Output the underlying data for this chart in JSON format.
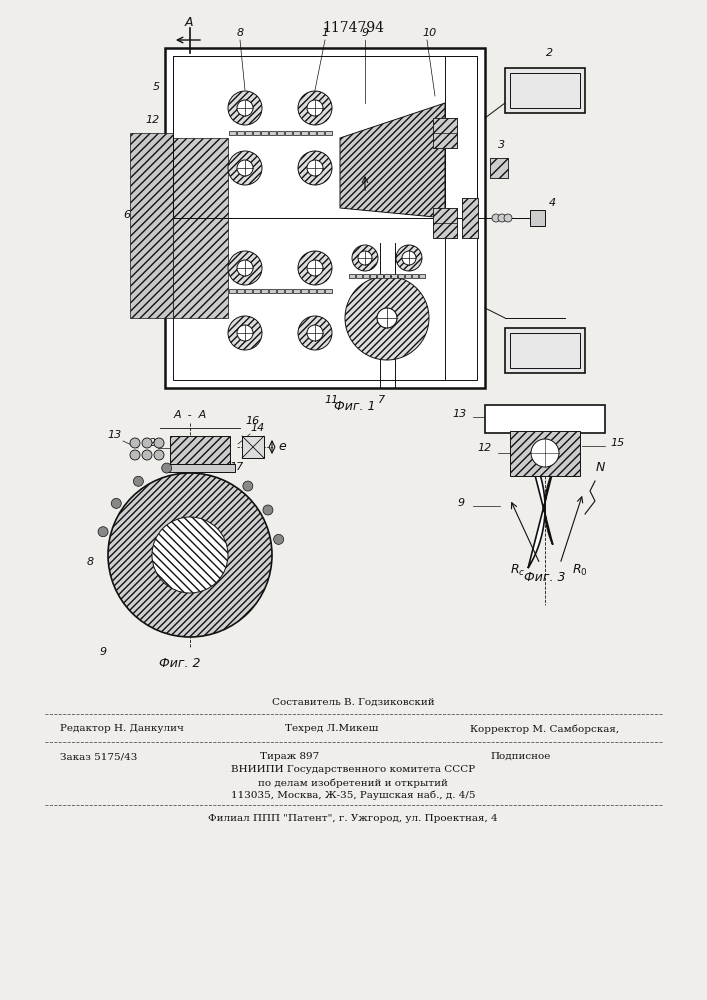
{
  "patent_number": "1174794",
  "bg_color": "#f0eeea",
  "line_color": "#111111",
  "fig1_caption": "Фиг. 1",
  "fig2_caption": "Фиг. 2",
  "fig3_caption": "Фиг. 3",
  "footer_line1_center1": "Составитель В. Годзиковский",
  "footer_line1_center2": "Техред Л.Микеш",
  "footer_line1_left": "Редактор Н. Данкулич",
  "footer_line1_right": "Корректор М. Самборская,",
  "footer_line2_left": "Заказ 5175/43",
  "footer_line2_center": "Тираж 897",
  "footer_line2_right": "Подписное",
  "footer_line3": "ВНИИПИ Государственного комитета СССР",
  "footer_line4": "по делам изобретений и открытий",
  "footer_line5": "113035, Москва, Ж-35, Раушская наб., д. 4/5",
  "footer_line6": "Филиал ППП \"Патент\", г. Ужгород, ул. Проектная, 4"
}
